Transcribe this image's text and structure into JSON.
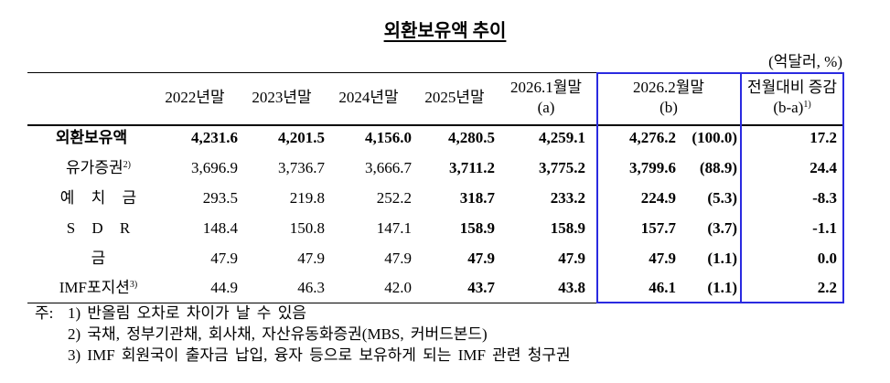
{
  "title": "외환보유액 추이",
  "unit": "(억달러, %)",
  "table": {
    "header": [
      {
        "lines": [
          "2022년말"
        ]
      },
      {
        "lines": [
          "2023년말"
        ]
      },
      {
        "lines": [
          "2024년말"
        ]
      },
      {
        "lines": [
          "2025년말"
        ]
      },
      {
        "lines": [
          "2026.1월말",
          "(a)"
        ]
      },
      {
        "lines": [
          "2026.2월말",
          "(b)"
        ]
      },
      {
        "lines": [
          "전월대비 증감",
          "(b-a)"
        ],
        "note": "1)"
      }
    ],
    "rows": [
      {
        "label": "외환보유액",
        "values": [
          "4,231.6",
          "4,201.5",
          "4,156.0",
          "4,280.5",
          "4,259.1",
          "4,276.2",
          "(100.0)",
          "17.2"
        ]
      },
      {
        "label": "유가증권",
        "note": "2)",
        "values": [
          "3,696.9",
          "3,736.7",
          "3,666.7",
          "3,711.2",
          "3,775.2",
          "3,799.6",
          "(88.9)",
          "24.4"
        ]
      },
      {
        "label": "예 치 금",
        "values": [
          "293.5",
          "219.8",
          "252.2",
          "318.7",
          "233.2",
          "224.9",
          "(5.3)",
          "-8.3"
        ]
      },
      {
        "label": "S D R",
        "values": [
          "148.4",
          "150.8",
          "147.1",
          "158.9",
          "158.9",
          "157.7",
          "(3.7)",
          "-1.1"
        ]
      },
      {
        "label": "금",
        "values": [
          "47.9",
          "47.9",
          "47.9",
          "47.9",
          "47.9",
          "47.9",
          "(1.1)",
          "0.0"
        ]
      },
      {
        "label": "IMF포지션",
        "note": "3)",
        "values": [
          "44.9",
          "46.3",
          "42.0",
          "43.7",
          "43.8",
          "46.1",
          "(1.1)",
          "2.2"
        ]
      }
    ]
  },
  "footnotes": {
    "prefix": "주:",
    "items": [
      "1) 반올림 오차로 차이가 날 수 있음",
      "2) 국채, 정부기관채, 회사채, 자산유동화증권(MBS, 커버드본드)",
      "3) IMF 회원국이 출자금 납입, 융자 등으로 보유하게 되는 IMF 관련 청구권"
    ]
  }
}
